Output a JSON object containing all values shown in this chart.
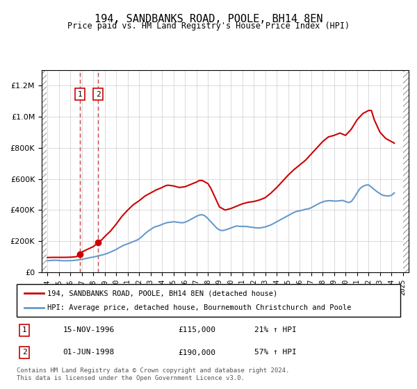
{
  "title": "194, SANDBANKS ROAD, POOLE, BH14 8EN",
  "subtitle": "Price paid vs. HM Land Registry's House Price Index (HPI)",
  "legend_line1": "194, SANDBANKS ROAD, POOLE, BH14 8EN (detached house)",
  "legend_line2": "HPI: Average price, detached house, Bournemouth Christchurch and Poole",
  "transaction1_label": "1",
  "transaction1_date": "15-NOV-1996",
  "transaction1_price": "£115,000",
  "transaction1_hpi": "21% ↑ HPI",
  "transaction2_label": "2",
  "transaction2_date": "01-JUN-1998",
  "transaction2_price": "£190,000",
  "transaction2_hpi": "57% ↑ HPI",
  "footer": "Contains HM Land Registry data © Crown copyright and database right 2024.\nThis data is licensed under the Open Government Licence v3.0.",
  "red_line_color": "#cc0000",
  "blue_line_color": "#6699cc",
  "hatch_color": "#cccccc",
  "grid_color": "#cccccc",
  "background_color": "#ffffff",
  "plot_bg_color": "#ffffff",
  "ylim": [
    0,
    1300000
  ],
  "yticks": [
    0,
    200000,
    400000,
    600000,
    800000,
    1000000,
    1200000
  ],
  "hpi_data": {
    "years": [
      1994.0,
      1994.25,
      1994.5,
      1994.75,
      1995.0,
      1995.25,
      1995.5,
      1995.75,
      1996.0,
      1996.25,
      1996.5,
      1996.75,
      1997.0,
      1997.25,
      1997.5,
      1997.75,
      1998.0,
      1998.25,
      1998.5,
      1998.75,
      1999.0,
      1999.25,
      1999.5,
      1999.75,
      2000.0,
      2000.25,
      2000.5,
      2000.75,
      2001.0,
      2001.25,
      2001.5,
      2001.75,
      2002.0,
      2002.25,
      2002.5,
      2002.75,
      2003.0,
      2003.25,
      2003.5,
      2003.75,
      2004.0,
      2004.25,
      2004.5,
      2004.75,
      2005.0,
      2005.25,
      2005.5,
      2005.75,
      2006.0,
      2006.25,
      2006.5,
      2006.75,
      2007.0,
      2007.25,
      2007.5,
      2007.75,
      2008.0,
      2008.25,
      2008.5,
      2008.75,
      2009.0,
      2009.25,
      2009.5,
      2009.75,
      2010.0,
      2010.25,
      2010.5,
      2010.75,
      2011.0,
      2011.25,
      2011.5,
      2011.75,
      2012.0,
      2012.25,
      2012.5,
      2012.75,
      2013.0,
      2013.25,
      2013.5,
      2013.75,
      2014.0,
      2014.25,
      2014.5,
      2014.75,
      2015.0,
      2015.25,
      2015.5,
      2015.75,
      2016.0,
      2016.25,
      2016.5,
      2016.75,
      2017.0,
      2017.25,
      2017.5,
      2017.75,
      2018.0,
      2018.25,
      2018.5,
      2018.75,
      2019.0,
      2019.25,
      2019.5,
      2019.75,
      2020.0,
      2020.25,
      2020.5,
      2020.75,
      2021.0,
      2021.25,
      2021.5,
      2021.75,
      2022.0,
      2022.25,
      2022.5,
      2022.75,
      2023.0,
      2023.25,
      2023.5,
      2023.75,
      2024.0,
      2024.25
    ],
    "values": [
      75000,
      76000,
      77000,
      77500,
      76000,
      75000,
      74000,
      74500,
      75000,
      76000,
      78000,
      80000,
      83000,
      87000,
      91000,
      95000,
      98000,
      102000,
      107000,
      111000,
      116000,
      122000,
      130000,
      138000,
      147000,
      158000,
      168000,
      177000,
      183000,
      190000,
      198000,
      205000,
      215000,
      230000,
      248000,
      263000,
      275000,
      288000,
      295000,
      300000,
      308000,
      315000,
      320000,
      322000,
      325000,
      323000,
      320000,
      318000,
      322000,
      330000,
      340000,
      350000,
      360000,
      368000,
      370000,
      362000,
      345000,
      325000,
      305000,
      285000,
      272000,
      268000,
      272000,
      278000,
      285000,
      292000,
      298000,
      295000,
      295000,
      295000,
      293000,
      290000,
      288000,
      285000,
      285000,
      288000,
      292000,
      298000,
      305000,
      315000,
      325000,
      335000,
      345000,
      355000,
      365000,
      375000,
      385000,
      392000,
      395000,
      400000,
      405000,
      408000,
      415000,
      425000,
      435000,
      445000,
      452000,
      458000,
      460000,
      460000,
      458000,
      458000,
      460000,
      462000,
      455000,
      448000,
      455000,
      480000,
      510000,
      538000,
      552000,
      560000,
      562000,
      548000,
      532000,
      518000,
      505000,
      495000,
      492000,
      490000,
      495000,
      510000
    ]
  },
  "red_line_data": {
    "years": [
      1994.0,
      1994.5,
      1995.0,
      1995.5,
      1996.0,
      1996.5,
      1996.83,
      1997.0,
      1997.5,
      1998.0,
      1998.42,
      1998.75,
      1999.0,
      1999.5,
      2000.0,
      2000.5,
      2001.0,
      2001.5,
      2002.0,
      2002.5,
      2003.0,
      2003.5,
      2004.0,
      2004.25,
      2004.5,
      2005.0,
      2005.25,
      2005.5,
      2006.0,
      2006.5,
      2007.0,
      2007.25,
      2007.5,
      2008.0,
      2008.25,
      2008.5,
      2008.75,
      2009.0,
      2009.5,
      2010.0,
      2010.5,
      2011.0,
      2011.5,
      2012.0,
      2012.5,
      2013.0,
      2013.5,
      2014.0,
      2014.5,
      2015.0,
      2015.5,
      2016.0,
      2016.5,
      2017.0,
      2017.5,
      2018.0,
      2018.5,
      2019.0,
      2019.5,
      2020.0,
      2020.5,
      2021.0,
      2021.5,
      2022.0,
      2022.25,
      2022.5,
      2023.0,
      2023.5,
      2024.0,
      2024.25
    ],
    "values": [
      95000,
      96000,
      96000,
      96000,
      97000,
      100000,
      115000,
      130000,
      148000,
      165000,
      190000,
      210000,
      230000,
      265000,
      310000,
      360000,
      400000,
      435000,
      460000,
      490000,
      510000,
      530000,
      545000,
      555000,
      560000,
      555000,
      550000,
      545000,
      550000,
      565000,
      580000,
      590000,
      590000,
      570000,
      540000,
      500000,
      460000,
      420000,
      400000,
      410000,
      425000,
      440000,
      450000,
      455000,
      465000,
      480000,
      510000,
      545000,
      585000,
      625000,
      660000,
      690000,
      720000,
      760000,
      800000,
      840000,
      870000,
      880000,
      895000,
      880000,
      920000,
      980000,
      1020000,
      1040000,
      1040000,
      980000,
      900000,
      860000,
      840000,
      830000
    ]
  },
  "transaction_dates": [
    1996.83,
    1998.42
  ],
  "transaction_values": [
    115000,
    190000
  ],
  "transaction_numbers": [
    "1",
    "2"
  ],
  "xlim": [
    1993.5,
    2025.5
  ],
  "xticks": [
    1994,
    1995,
    1996,
    1997,
    1998,
    1999,
    2000,
    2001,
    2002,
    2003,
    2004,
    2005,
    2006,
    2007,
    2008,
    2009,
    2010,
    2011,
    2012,
    2013,
    2014,
    2015,
    2016,
    2017,
    2018,
    2019,
    2020,
    2021,
    2022,
    2023,
    2024,
    2025
  ]
}
